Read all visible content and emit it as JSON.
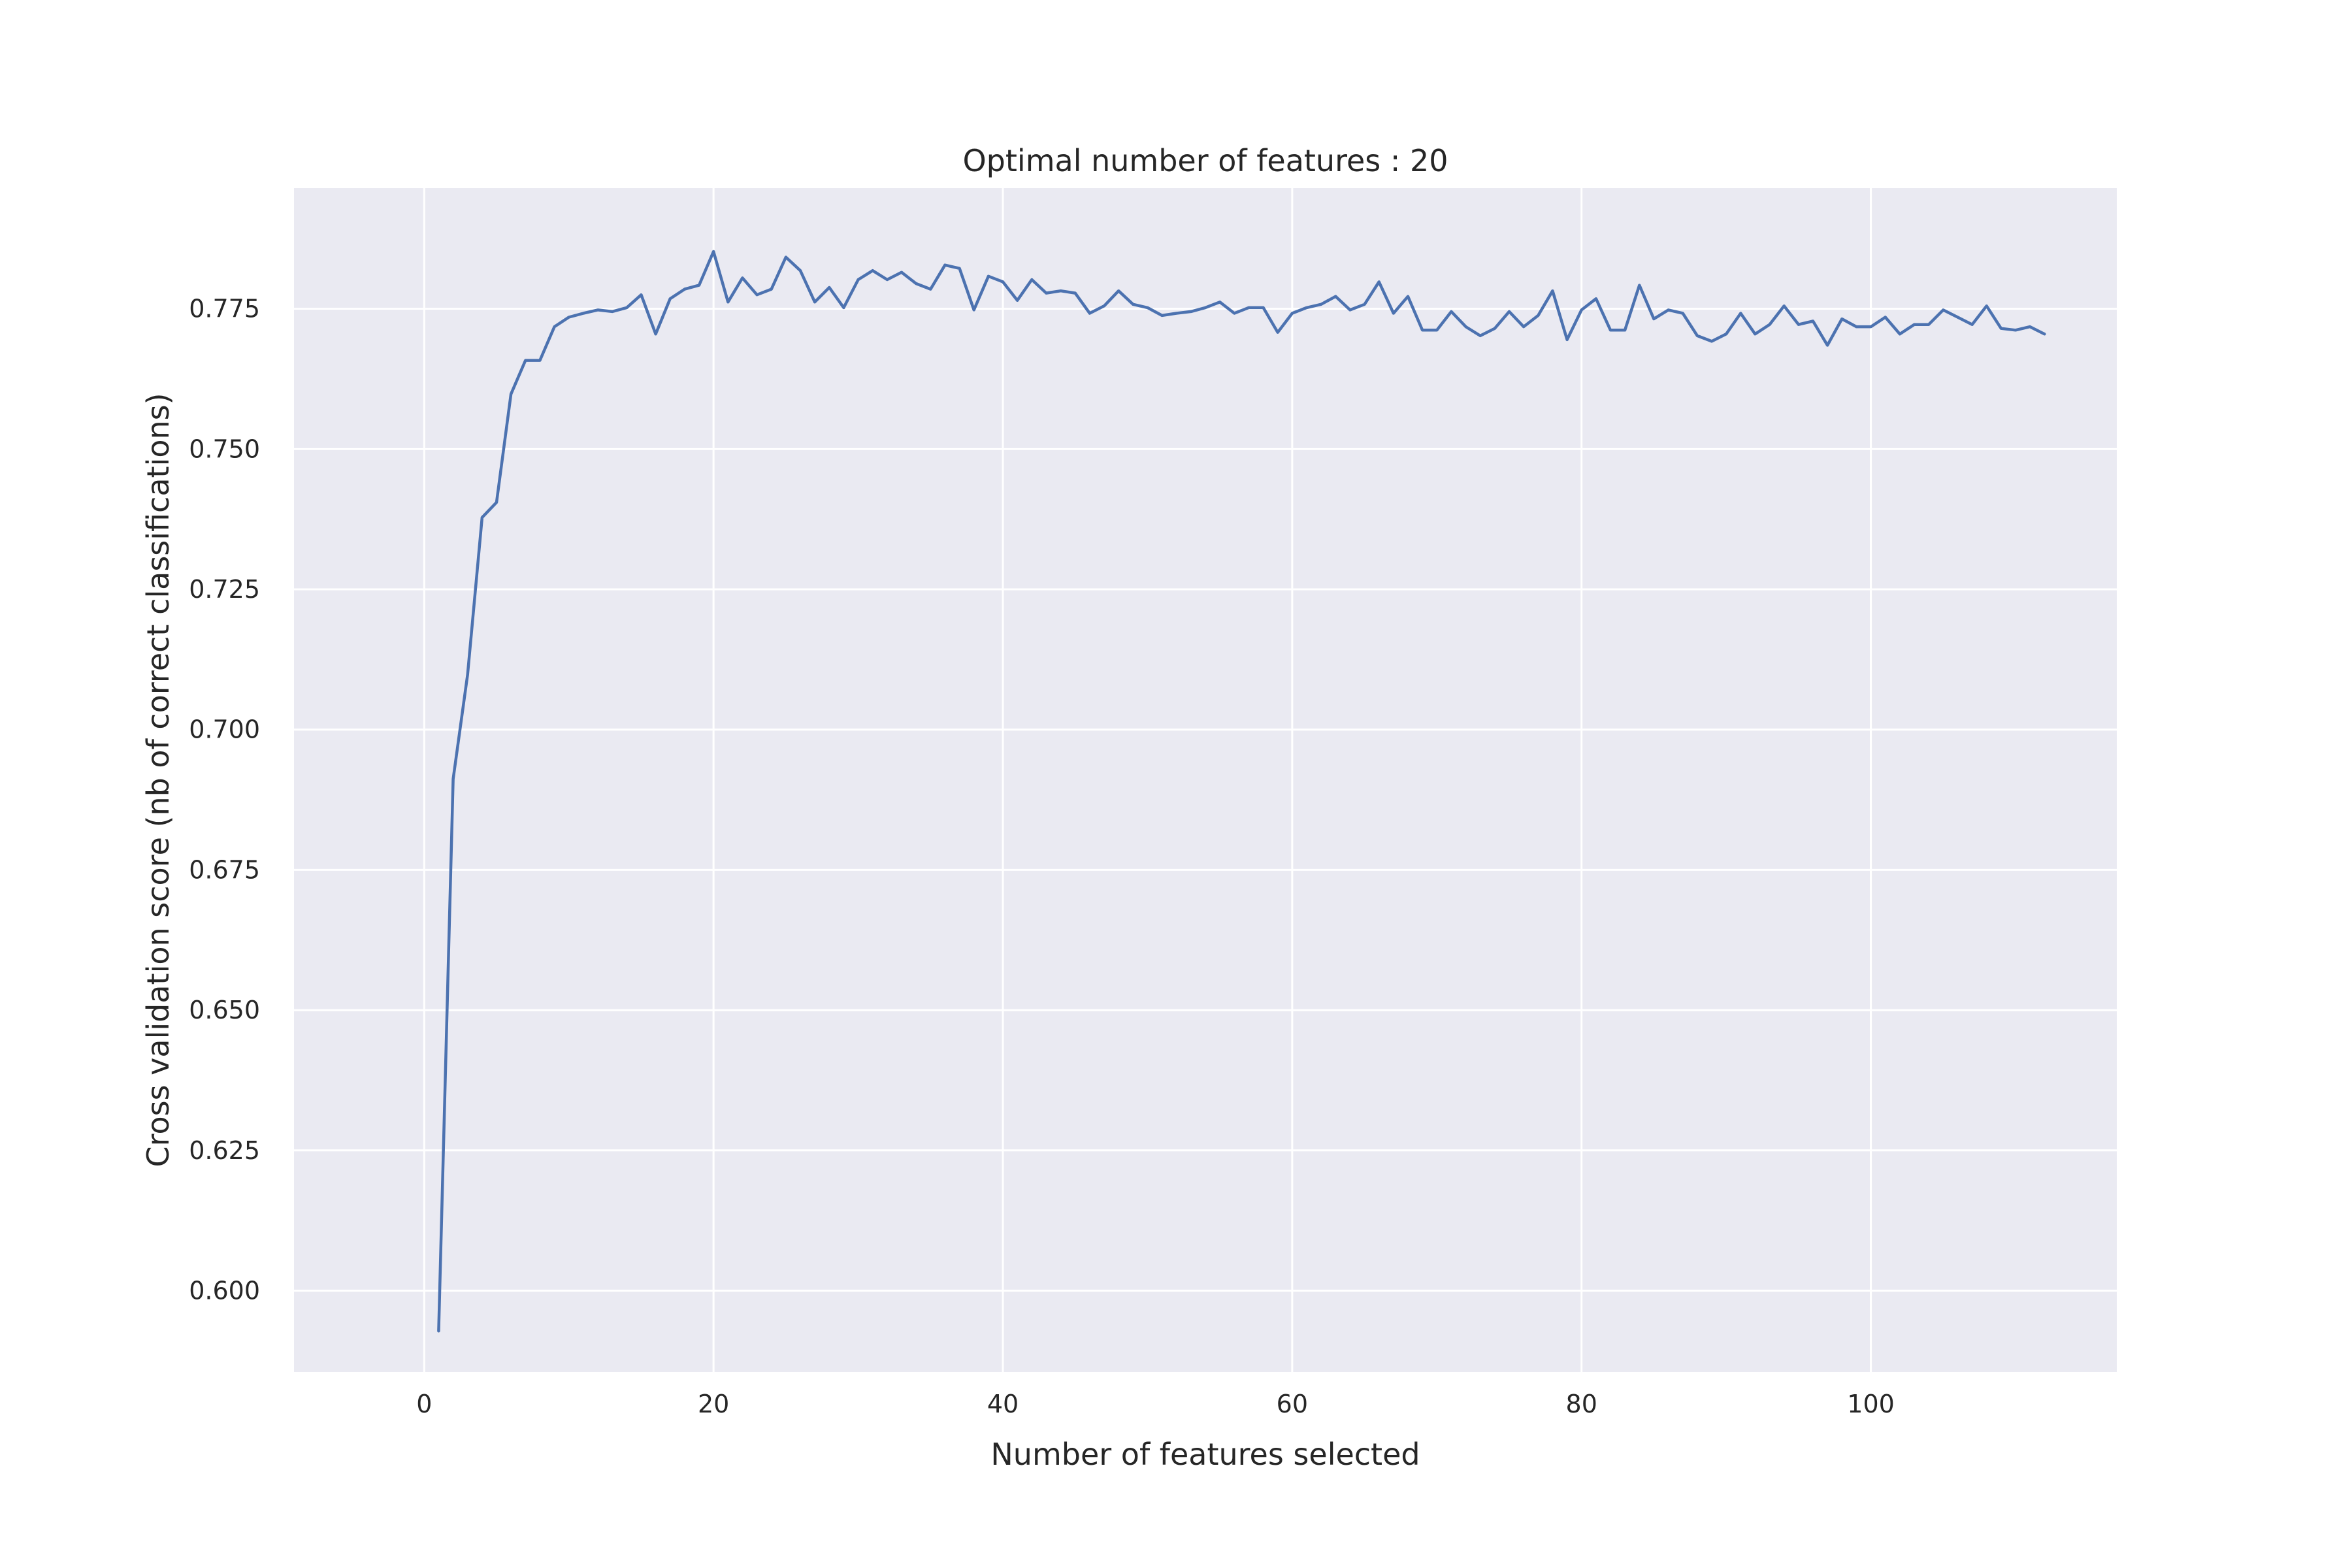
{
  "chart_data": {
    "type": "line",
    "title": "Optimal number of features : 20",
    "xlabel": "Number of features selected",
    "ylabel": "Cross validation score (nb of correct classifications)",
    "xlim": [
      -9,
      117
    ],
    "ylim": [
      0.5855,
      0.7965
    ],
    "xticks": [
      0,
      20,
      40,
      60,
      80,
      100
    ],
    "yticks": [
      0.6,
      0.625,
      0.65,
      0.675,
      0.7,
      0.725,
      0.75,
      0.775
    ],
    "xtick_labels": [
      "0",
      "20",
      "40",
      "60",
      "80",
      "100"
    ],
    "ytick_labels": [
      "0.600",
      "0.625",
      "0.650",
      "0.675",
      "0.700",
      "0.725",
      "0.750",
      "0.775"
    ],
    "grid": true,
    "line_color": "#4c72b0",
    "plot_background": "#eaeaf2",
    "series": [
      {
        "x": [
          1,
          2,
          3,
          4,
          5,
          6,
          7,
          8,
          9,
          10,
          11,
          12,
          13,
          14,
          15,
          16,
          17,
          18,
          19,
          20,
          21,
          22,
          23,
          24,
          25,
          26,
          27,
          28,
          29,
          30,
          31,
          32,
          33,
          34,
          35,
          36,
          37,
          38,
          39,
          40,
          41,
          42,
          43,
          44,
          45,
          46,
          47,
          48,
          49,
          50,
          51,
          52,
          53,
          54,
          55,
          56,
          57,
          58,
          59,
          60,
          61,
          62,
          63,
          64,
          65,
          66,
          67,
          68,
          69,
          70,
          71,
          72,
          73,
          74,
          75,
          76,
          77,
          78,
          79,
          80,
          81,
          82,
          83,
          84,
          85,
          86,
          87,
          88,
          89,
          90,
          91,
          92,
          93,
          94,
          95,
          96,
          97,
          98,
          99,
          100,
          101,
          102,
          103,
          104,
          105,
          106,
          107,
          108,
          109,
          110,
          111,
          112
        ],
        "y": [
          0.5928,
          0.6912,
          0.7098,
          0.7378,
          0.7405,
          0.7598,
          0.7658,
          0.7658,
          0.7718,
          0.7735,
          0.7742,
          0.7748,
          0.7745,
          0.7752,
          0.7775,
          0.7705,
          0.7768,
          0.7785,
          0.7792,
          0.7852,
          0.7762,
          0.7805,
          0.7775,
          0.7785,
          0.7842,
          0.7818,
          0.7762,
          0.7788,
          0.7752,
          0.7802,
          0.7818,
          0.7802,
          0.7815,
          0.7795,
          0.7785,
          0.7828,
          0.7822,
          0.7748,
          0.7808,
          0.7798,
          0.7765,
          0.7802,
          0.7778,
          0.7782,
          0.7778,
          0.7742,
          0.7755,
          0.7782,
          0.7758,
          0.7752,
          0.7738,
          0.7742,
          0.7745,
          0.7752,
          0.7762,
          0.7742,
          0.7752,
          0.7752,
          0.7708,
          0.7742,
          0.7752,
          0.7758,
          0.7772,
          0.7748,
          0.7758,
          0.7798,
          0.7742,
          0.7772,
          0.7712,
          0.7712,
          0.7745,
          0.7718,
          0.7702,
          0.7715,
          0.7745,
          0.7718,
          0.7738,
          0.7782,
          0.7695,
          0.7748,
          0.7768,
          0.7712,
          0.7712,
          0.7792,
          0.7732,
          0.7748,
          0.7742,
          0.7702,
          0.7692,
          0.7705,
          0.7742,
          0.7705,
          0.7722,
          0.7755,
          0.7722,
          0.7728,
          0.7685,
          0.7732,
          0.7718,
          0.7718,
          0.7735,
          0.7705,
          0.7722,
          0.7722,
          0.7748,
          0.7735,
          0.7722,
          0.7755,
          0.7715,
          0.7712,
          0.7718,
          0.7705
        ]
      }
    ]
  }
}
